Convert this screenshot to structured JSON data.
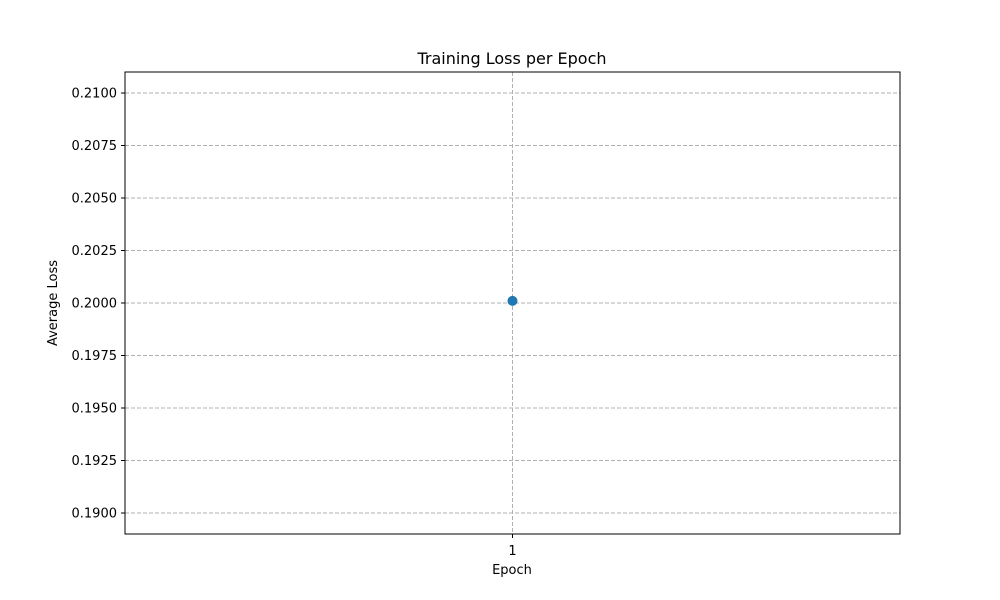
{
  "chart_data": {
    "type": "line",
    "title": "Training Loss per Epoch",
    "xlabel": "Epoch",
    "ylabel": "Average Loss",
    "x_ticks": [
      "1"
    ],
    "y_ticks": [
      "0.1900",
      "0.1925",
      "0.1950",
      "0.1975",
      "0.2000",
      "0.2025",
      "0.2050",
      "0.2075",
      "0.2100"
    ],
    "ylim": [
      0.189,
      0.211
    ],
    "grid": true,
    "series": [
      {
        "x": [
          1
        ],
        "y": [
          0.2001
        ],
        "color": "#1f77b4",
        "marker": "circle"
      }
    ]
  }
}
